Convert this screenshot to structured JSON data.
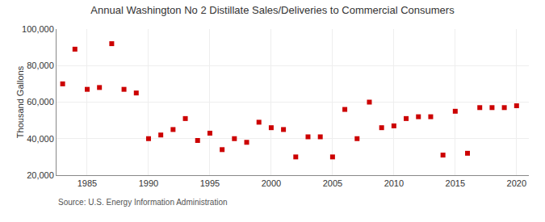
{
  "chart_data": {
    "type": "scatter",
    "title": "Annual Washington No 2 Distillate Sales/Deliveries to Commercial Consumers",
    "ylabel": "Thousand Gallons",
    "annotation": "Source: U.S. Energy Information Administration",
    "x": [
      1983,
      1984,
      1985,
      1986,
      1987,
      1988,
      1989,
      1990,
      1991,
      1992,
      1993,
      1994,
      1995,
      1996,
      1997,
      1998,
      1999,
      2000,
      2001,
      2002,
      2003,
      2004,
      2005,
      2006,
      2007,
      2008,
      2009,
      2010,
      2011,
      2012,
      2013,
      2014,
      2015,
      2016,
      2017,
      2018,
      2019,
      2020
    ],
    "values": [
      70000,
      89000,
      67000,
      68000,
      92000,
      67000,
      65000,
      40000,
      42000,
      45000,
      51000,
      39000,
      43000,
      34000,
      40000,
      38000,
      49000,
      46000,
      45000,
      30000,
      41000,
      41000,
      30000,
      56000,
      40000,
      60000,
      46000,
      47000,
      51000,
      52000,
      52000,
      31000,
      55000,
      32000,
      57000,
      57000,
      57000,
      58000
    ],
    "color": "#cc0000",
    "marker": "square",
    "xlim": [
      1982.5,
      2021
    ],
    "xticks": [
      1985,
      1990,
      1995,
      2000,
      2005,
      2010,
      2015,
      2020
    ],
    "ylim": [
      20000,
      100000
    ],
    "yticks": [
      {
        "value": 20000,
        "label": "20,000"
      },
      {
        "value": 40000,
        "label": "40,000"
      },
      {
        "value": 60000,
        "label": "60,000"
      },
      {
        "value": 80000,
        "label": "80,000"
      },
      {
        "value": 100000,
        "label": "100,000"
      }
    ],
    "grid": true
  }
}
